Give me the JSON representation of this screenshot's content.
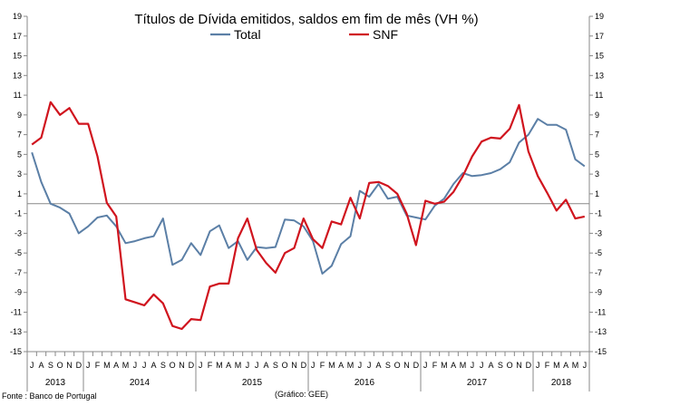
{
  "chart_data": {
    "type": "line",
    "title": "Títulos de Dívida emitidos, saldos em fim de mês  (VH %)",
    "ylim": [
      -15,
      19
    ],
    "yticks": [
      -15,
      -13,
      -11,
      -9,
      -7,
      -5,
      -3,
      -1,
      1,
      3,
      5,
      7,
      9,
      11,
      13,
      15,
      17,
      19
    ],
    "y_axes": "left and right (same scale)",
    "legend_position": "top-center",
    "grid": false,
    "x": [
      "2013-07",
      "2013-08",
      "2013-09",
      "2013-10",
      "2013-11",
      "2013-12",
      "2014-01",
      "2014-02",
      "2014-03",
      "2014-04",
      "2014-05",
      "2014-06",
      "2014-07",
      "2014-08",
      "2014-09",
      "2014-10",
      "2014-11",
      "2014-12",
      "2015-01",
      "2015-02",
      "2015-03",
      "2015-04",
      "2015-05",
      "2015-06",
      "2015-07",
      "2015-08",
      "2015-09",
      "2015-10",
      "2015-11",
      "2015-12",
      "2016-01",
      "2016-02",
      "2016-03",
      "2016-04",
      "2016-05",
      "2016-06",
      "2016-07",
      "2016-08",
      "2016-09",
      "2016-10",
      "2016-11",
      "2016-12",
      "2017-01",
      "2017-02",
      "2017-03",
      "2017-04",
      "2017-05",
      "2017-06",
      "2017-07",
      "2017-08",
      "2017-09",
      "2017-10",
      "2017-11",
      "2017-12",
      "2018-01",
      "2018-02",
      "2018-03",
      "2018-04",
      "2018-05",
      "2018-06"
    ],
    "month_labels": [
      "J",
      "A",
      "S",
      "O",
      "N",
      "D",
      "J",
      "F",
      "M",
      "A",
      "M",
      "J",
      "J",
      "A",
      "S",
      "O",
      "N",
      "D",
      "J",
      "F",
      "M",
      "A",
      "M",
      "J",
      "J",
      "A",
      "S",
      "O",
      "N",
      "D",
      "J",
      "F",
      "M",
      "A",
      "M",
      "J",
      "J",
      "A",
      "S",
      "O",
      "N",
      "D",
      "J",
      "F",
      "M",
      "A",
      "M",
      "J",
      "J",
      "A",
      "S",
      "O",
      "N",
      "D",
      "J",
      "F",
      "M",
      "A",
      "M",
      "J"
    ],
    "year_labels": [
      {
        "label": "2013",
        "start": 0,
        "end": 5
      },
      {
        "label": "2014",
        "start": 6,
        "end": 17
      },
      {
        "label": "2015",
        "start": 18,
        "end": 29
      },
      {
        "label": "2016",
        "start": 30,
        "end": 41
      },
      {
        "label": "2017",
        "start": 42,
        "end": 53
      },
      {
        "label": "2018",
        "start": 54,
        "end": 59
      }
    ],
    "series": [
      {
        "name": "Total",
        "color": "#5b7fa6",
        "values": [
          5.2,
          2.2,
          0.0,
          -0.4,
          -1.0,
          -3.0,
          -2.3,
          -1.4,
          -1.2,
          -2.3,
          -4.0,
          -3.8,
          -3.5,
          -3.3,
          -1.5,
          -6.2,
          -5.7,
          -4.0,
          -5.2,
          -2.8,
          -2.2,
          -4.5,
          -3.8,
          -5.7,
          -4.4,
          -4.5,
          -4.4,
          -1.6,
          -1.7,
          -2.3,
          -3.8,
          -7.1,
          -6.3,
          -4.1,
          -3.3,
          1.3,
          0.7,
          2.0,
          0.5,
          0.7,
          -1.2,
          -1.4,
          -1.6,
          -0.2,
          0.5,
          2.0,
          3.1,
          2.8,
          2.9,
          3.1,
          3.5,
          4.2,
          6.2,
          7.0,
          8.6,
          8.0,
          8.0,
          7.5,
          4.5,
          3.8
        ]
      },
      {
        "name": "SNF",
        "color": "#d0141e",
        "values": [
          6.0,
          6.7,
          10.3,
          9.0,
          9.7,
          8.1,
          8.1,
          4.8,
          0.1,
          -1.3,
          -9.7,
          -10.0,
          -10.3,
          -9.2,
          -10.1,
          -12.4,
          -12.7,
          -11.7,
          -11.8,
          -8.4,
          -8.1,
          -8.1,
          -3.5,
          -1.5,
          -4.7,
          -6.0,
          -7.0,
          -5.0,
          -4.5,
          -1.5,
          -3.6,
          -4.5,
          -1.8,
          -2.1,
          0.6,
          -1.5,
          2.1,
          2.2,
          1.8,
          1.0,
          -1.0,
          -4.2,
          0.3,
          0.0,
          0.2,
          1.2,
          2.8,
          4.8,
          6.3,
          6.7,
          6.6,
          7.6,
          10.0,
          5.3,
          2.8,
          1.1,
          -0.7,
          0.4,
          -1.5,
          -1.3
        ]
      }
    ]
  },
  "footer": {
    "source": "Fonte : Banco de Portugal",
    "credit": "(Gráfico: GEE)"
  }
}
